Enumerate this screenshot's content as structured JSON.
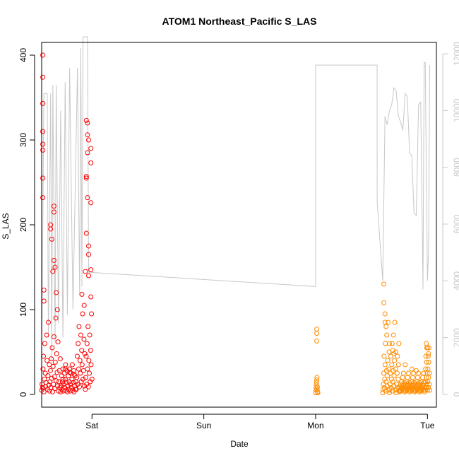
{
  "chart_data": {
    "type": "scatter",
    "title": "ATOM1 Northeast_Pacific S_LAS",
    "xlabel": "Date",
    "ylabel": "S_LAS",
    "x_ticks": [
      "Sat",
      "Sun",
      "Mon",
      "Tue"
    ],
    "x_tick_days": [
      1,
      2,
      3,
      4
    ],
    "xlim_days": [
      0.55,
      4.08
    ],
    "ylim": [
      -15,
      415
    ],
    "y_ticks": [
      0,
      100,
      200,
      300,
      400
    ],
    "y2_ticks": [
      0,
      2000,
      4000,
      6000,
      8000,
      10000,
      12000
    ],
    "y2lim": [
      -450,
      12400
    ],
    "colors": {
      "series_1": "#ff0000",
      "series_2": "#ff8c00",
      "secondary_line": "#c8c8c8",
      "axis": "#000000",
      "secondary_axis": "#c8c8c8"
    },
    "series": [
      {
        "color_key": "series_1",
        "clusters": [
          {
            "x_start": 0.55,
            "x_end": 0.62,
            "x_step": 0.004,
            "pattern": [
              5,
              12,
              8,
              30,
              45,
              3,
              18,
              60,
              25,
              9,
              14,
              70,
              40,
              6,
              22,
              85,
              11,
              35,
              2,
              50
            ],
            "extra": [
              [
                0.56,
                400
              ],
              [
                0.56,
                374
              ],
              [
                0.56,
                343
              ],
              [
                0.56,
                310
              ],
              [
                0.56,
                295
              ],
              [
                0.56,
                288
              ],
              [
                0.56,
                255
              ],
              [
                0.56,
                232
              ],
              [
                0.57,
                123
              ],
              [
                0.57,
                110
              ]
            ]
          },
          {
            "x_start": 0.62,
            "x_end": 0.72,
            "x_step": 0.004,
            "pattern": [
              4,
              15,
              28,
              8,
              42,
              19,
              55,
              3,
              33,
              12,
              68,
              21,
              7,
              38,
              90,
              16,
              48,
              26,
              10,
              62
            ],
            "extra": [
              [
                0.63,
                200
              ],
              [
                0.63,
                195
              ],
              [
                0.64,
                183
              ],
              [
                0.66,
                222
              ],
              [
                0.66,
                215
              ],
              [
                0.67,
                150
              ],
              [
                0.66,
                158
              ],
              [
                0.65,
                145
              ],
              [
                0.68,
                120
              ],
              [
                0.69,
                100
              ]
            ]
          },
          {
            "x_start": 0.72,
            "x_end": 0.86,
            "x_step": 0.004,
            "pattern": [
              3,
              10,
              22,
              6,
              15,
              30,
              4,
              12,
              25,
              8,
              18,
              35,
              5,
              14,
              28
            ],
            "extra": [
              [
                0.76,
                30
              ],
              [
                0.8,
                26
              ],
              [
                0.84,
                24
              ],
              [
                0.74,
                18
              ]
            ]
          },
          {
            "x_start": 0.86,
            "x_end": 1.0,
            "x_step": 0.004,
            "pattern": [
              6,
              20,
              45,
              12,
              60,
              30,
              80,
              9,
              40,
              25,
              70,
              15,
              52,
              35,
              95,
              18,
              28,
              65,
              10,
              48
            ],
            "extra": [
              [
                0.95,
                323
              ],
              [
                0.96,
                320
              ],
              [
                0.96,
                306
              ],
              [
                0.97,
                300
              ],
              [
                0.96,
                285
              ],
              [
                0.99,
                290
              ],
              [
                0.99,
                273
              ],
              [
                0.95,
                257
              ],
              [
                0.95,
                255
              ],
              [
                0.96,
                232
              ],
              [
                0.99,
                226
              ],
              [
                0.95,
                190
              ],
              [
                0.97,
                175
              ],
              [
                0.97,
                165
              ],
              [
                0.94,
                145
              ],
              [
                0.99,
                147
              ],
              [
                0.97,
                140
              ],
              [
                0.91,
                118
              ],
              [
                0.93,
                105
              ],
              [
                0.99,
                115
              ]
            ]
          }
        ]
      },
      {
        "color_key": "series_2",
        "clusters": [
          {
            "x_start": 3.0,
            "x_end": 3.02,
            "x_step": 0.002,
            "pattern": [
              2,
              5,
              8,
              11,
              14,
              17,
              20,
              6,
              9,
              3
            ],
            "extra": [
              [
                3.01,
                77
              ],
              [
                3.01,
                72
              ],
              [
                3.01,
                63
              ]
            ]
          },
          {
            "x_start": 3.6,
            "x_end": 3.75,
            "x_step": 0.003,
            "pattern": [
              2,
              6,
              12,
              25,
              45,
              8,
              18,
              35,
              60,
              4,
              15,
              28,
              70,
              10,
              22,
              40,
              85,
              5,
              30,
              50
            ],
            "extra": [
              [
                3.61,
                130
              ],
              [
                3.61,
                108
              ],
              [
                3.62,
                95
              ],
              [
                3.62,
                85
              ],
              [
                3.63,
                80
              ],
              [
                3.66,
                60
              ],
              [
                3.69,
                52
              ],
              [
                3.7,
                48
              ]
            ]
          },
          {
            "x_start": 3.75,
            "x_end": 3.98,
            "x_step": 0.003,
            "pattern": [
              3,
              8,
              5,
              12,
              4,
              9,
              15,
              6,
              10,
              20,
              7,
              11,
              25,
              5,
              14
            ],
            "extra": [
              [
                3.8,
                35
              ],
              [
                3.86,
                30
              ],
              [
                3.9,
                28
              ]
            ]
          },
          {
            "x_start": 3.98,
            "x_end": 4.02,
            "x_step": 0.002,
            "pattern": [
              5,
              15,
              30,
              45,
              8,
              20,
              38,
              55,
              12,
              25
            ],
            "extra": [
              [
                3.99,
                60
              ],
              [
                4.0,
                55
              ],
              [
                4.01,
                48
              ]
            ]
          }
        ]
      }
    ],
    "secondary_line": [
      [
        0.55,
        800
      ],
      [
        0.57,
        10600
      ],
      [
        0.6,
        10600
      ],
      [
        0.61,
        2000
      ],
      [
        0.63,
        10600
      ],
      [
        0.64,
        1200
      ],
      [
        0.65,
        10900
      ],
      [
        0.67,
        1800
      ],
      [
        0.68,
        10900
      ],
      [
        0.7,
        2500
      ],
      [
        0.72,
        10000
      ],
      [
        0.74,
        2000
      ],
      [
        0.76,
        11000
      ],
      [
        0.78,
        2800
      ],
      [
        0.8,
        11500
      ],
      [
        0.83,
        3000
      ],
      [
        0.87,
        11500
      ],
      [
        0.89,
        3500
      ],
      [
        0.9,
        12200
      ],
      [
        0.91,
        3800
      ],
      [
        0.92,
        12600
      ],
      [
        0.96,
        12600
      ],
      [
        0.97,
        4300
      ],
      [
        0.98,
        4300
      ],
      [
        3.0,
        3800
      ],
      [
        3.0,
        11600
      ],
      [
        3.55,
        11600
      ],
      [
        3.55,
        6800
      ],
      [
        3.6,
        4000
      ],
      [
        3.62,
        9800
      ],
      [
        3.64,
        9500
      ],
      [
        3.66,
        10000
      ],
      [
        3.68,
        10200
      ],
      [
        3.7,
        10800
      ],
      [
        3.72,
        10700
      ],
      [
        3.74,
        9800
      ],
      [
        3.76,
        9600
      ],
      [
        3.78,
        9300
      ],
      [
        3.8,
        10600
      ],
      [
        3.82,
        10500
      ],
      [
        3.84,
        8500
      ],
      [
        3.86,
        8400
      ],
      [
        3.88,
        6400
      ],
      [
        3.9,
        6300
      ],
      [
        3.92,
        10200
      ],
      [
        3.94,
        10300
      ],
      [
        3.96,
        3700
      ],
      [
        3.97,
        11700
      ],
      [
        3.98,
        11700
      ],
      [
        4.0,
        4000
      ],
      [
        4.01,
        5000
      ],
      [
        4.02,
        11600
      ]
    ]
  }
}
